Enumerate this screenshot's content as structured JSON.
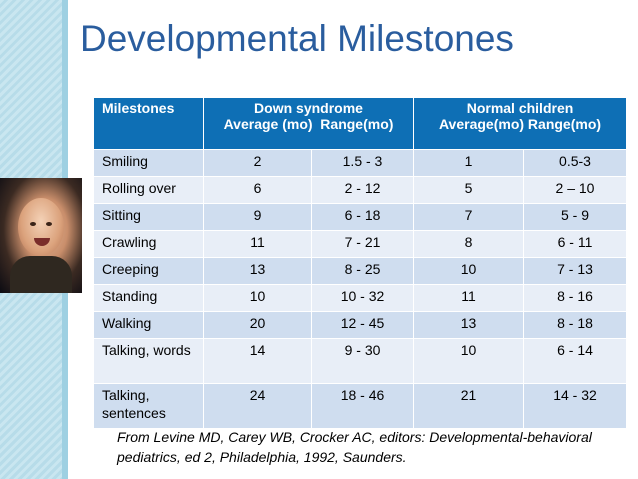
{
  "title": "Developmental Milestones",
  "table": {
    "header": {
      "milestones": "Milestones",
      "down_syndrome": "Down syndrome",
      "down_sub": "Average (mo)  Range(mo)",
      "normal_children": "Normal children",
      "normal_sub": "Average(mo) Range(mo)"
    },
    "rows": [
      {
        "name": "Smiling",
        "ds_avg": "2",
        "ds_range": "1.5 - 3",
        "nc_avg": "1",
        "nc_range": "0.5-3"
      },
      {
        "name": "Rolling over",
        "ds_avg": "6",
        "ds_range": "2 - 12",
        "nc_avg": "5",
        "nc_range": "2 – 10"
      },
      {
        "name": "Sitting",
        "ds_avg": "9",
        "ds_range": "6 - 18",
        "nc_avg": "7",
        "nc_range": "5 - 9"
      },
      {
        "name": "Crawling",
        "ds_avg": "11",
        "ds_range": "7 - 21",
        "nc_avg": "8",
        "nc_range": "6 - 11"
      },
      {
        "name": "Creeping",
        "ds_avg": "13",
        "ds_range": "8 - 25",
        "nc_avg": "10",
        "nc_range": "7 - 13"
      },
      {
        "name": "Standing",
        "ds_avg": "10",
        "ds_range": "10 - 32",
        "nc_avg": "11",
        "nc_range": "8 - 16"
      },
      {
        "name": "Walking",
        "ds_avg": "20",
        "ds_range": "12 - 45",
        "nc_avg": "13",
        "nc_range": "8 - 18"
      },
      {
        "name": "Talking, words",
        "ds_avg": "14",
        "ds_range": "9 - 30",
        "nc_avg": "10",
        "nc_range": "6 - 14"
      },
      {
        "name": "Talking, sentences",
        "ds_avg": "24",
        "ds_range": "18 - 46",
        "nc_avg": "21",
        "nc_range": "14 - 32"
      }
    ]
  },
  "source": "From Levine MD, Carey WB, Crocker AC, editors: Developmental-behavioral pediatrics, ed 2, Philadelphia, 1992, Saunders.",
  "colors": {
    "title": "#2a5d9e",
    "header_bg": "#0e6fb5",
    "row_odd": "#cfddef",
    "row_even": "#e8eef7"
  }
}
